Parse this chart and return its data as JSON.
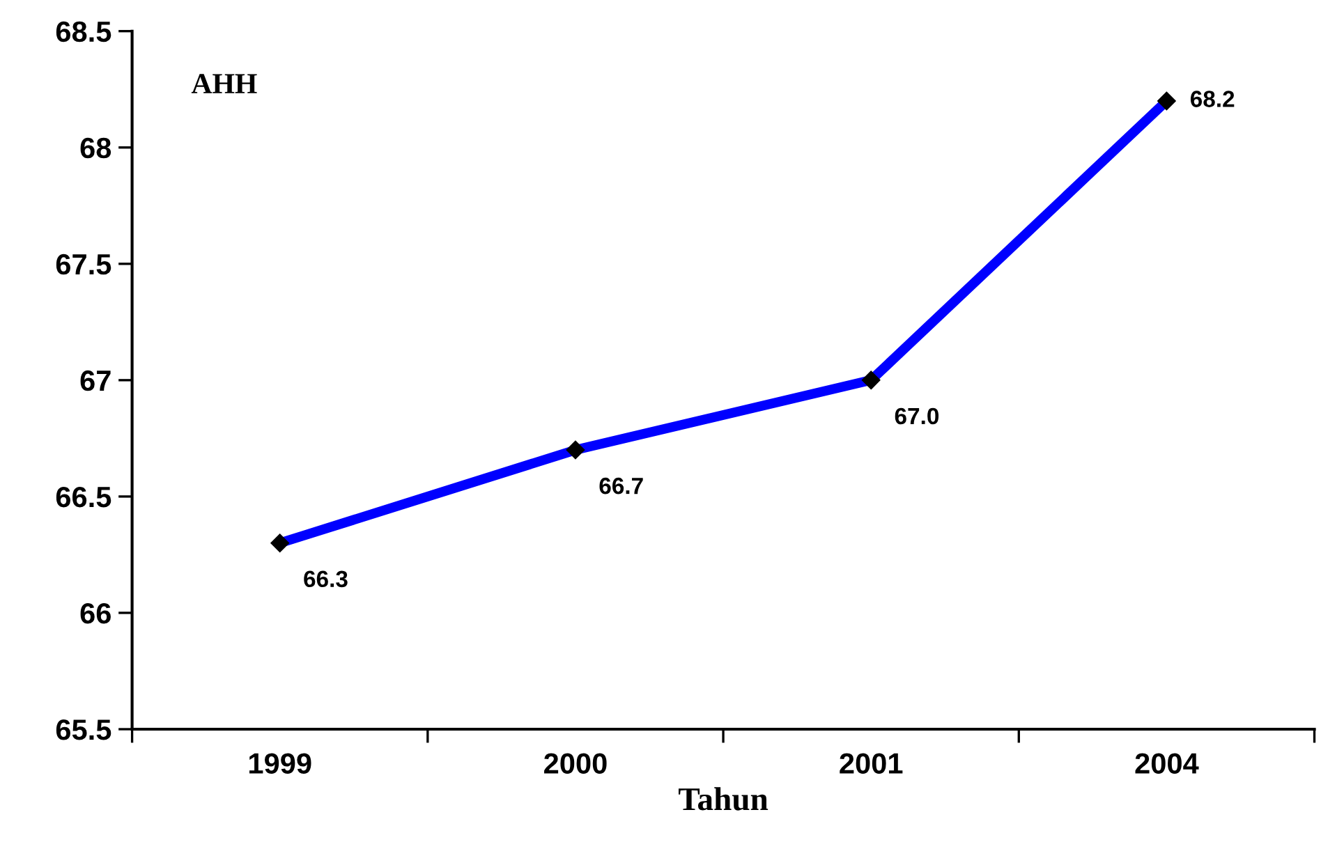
{
  "chart_data": {
    "type": "line",
    "xlabel": "Tahun",
    "annotations": [
      "AHH"
    ],
    "categories": [
      "1999",
      "2000",
      "2001",
      "2004"
    ],
    "series": [
      {
        "color": "#0000ff",
        "values": [
          66.3,
          66.7,
          67.0,
          68.2
        ],
        "value_labels": [
          "66.3",
          "66.7",
          "67.0",
          "68.2"
        ]
      }
    ],
    "ylim": [
      65.5,
      68.5
    ],
    "yticks": [
      65.5,
      66,
      66.5,
      67,
      67.5,
      68,
      68.5
    ],
    "grid": false,
    "marker": "diamond",
    "line_style": "solid"
  }
}
